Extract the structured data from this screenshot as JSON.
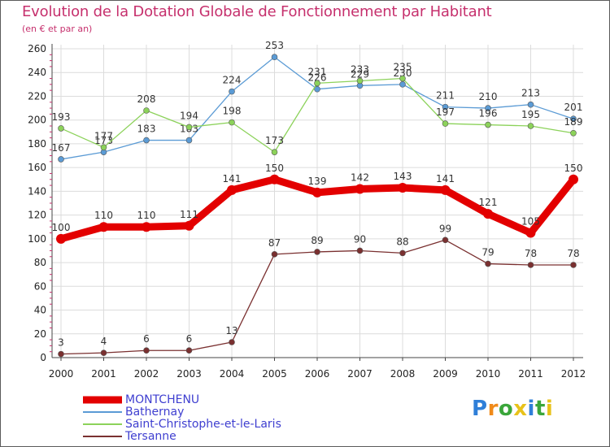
{
  "chart_data": {
    "type": "line",
    "title": "Evolution de la Dotation Globale de Fonctionnement par Habitant",
    "subtitle": "(en € et par an)",
    "xlabel": "",
    "ylabel": "",
    "ylim": [
      0,
      260
    ],
    "yticks": [
      0,
      20,
      40,
      60,
      80,
      100,
      120,
      140,
      160,
      180,
      200,
      220,
      240,
      260
    ],
    "grid": true,
    "legend_position": "bottom-left",
    "categories": [
      "2000",
      "2001",
      "2002",
      "2003",
      "2004",
      "2005",
      "2006",
      "2007",
      "2008",
      "2009",
      "2010",
      "2011",
      "2012"
    ],
    "series": [
      {
        "name": "MONTCHENU",
        "color": "#e30000",
        "values": [
          100,
          110,
          110,
          111,
          141,
          150,
          139,
          142,
          143,
          141,
          121,
          105,
          150
        ],
        "labels": [
          "100",
          "110",
          "110",
          "111",
          "141",
          "150",
          "139",
          "142",
          "143",
          "141",
          "121",
          "105",
          "150"
        ]
      },
      {
        "name": "Bathernay",
        "color": "#5b9bd5",
        "values": [
          167,
          173,
          183,
          183,
          224,
          253,
          226,
          229,
          230,
          211,
          210,
          213,
          201
        ],
        "labels": [
          "167",
          "173",
          "183",
          "183",
          "224",
          "253",
          "226",
          "229",
          "230",
          "211",
          "210",
          "213",
          "201"
        ]
      },
      {
        "name": "Saint-Christophe-et-le-Laris",
        "color": "#8cd25a",
        "values": [
          193,
          177,
          208,
          194,
          198,
          173,
          231,
          233,
          235,
          197,
          196,
          195,
          189
        ],
        "labels": [
          "193",
          "177",
          "208",
          "194",
          "198",
          "173",
          "231",
          "233",
          "235",
          "197",
          "196",
          "195",
          "189"
        ]
      },
      {
        "name": "Tersanne",
        "color": "#7a3030",
        "values": [
          3,
          4,
          6,
          6,
          13,
          87,
          89,
          90,
          88,
          99,
          79,
          78,
          78
        ],
        "labels": [
          "3",
          "4",
          "6",
          "6",
          "13",
          "87",
          "89",
          "90",
          "88",
          "99",
          "79",
          "78",
          "78"
        ]
      }
    ]
  },
  "brand": {
    "letters": [
      "P",
      "r",
      "o",
      "x",
      "i",
      "t",
      "i"
    ],
    "colors": [
      "#2f7fd8",
      "#f08a1a",
      "#3aa63a",
      "#e8c21a",
      "#2f7fd8",
      "#3aa63a",
      "#e8c21a"
    ]
  }
}
